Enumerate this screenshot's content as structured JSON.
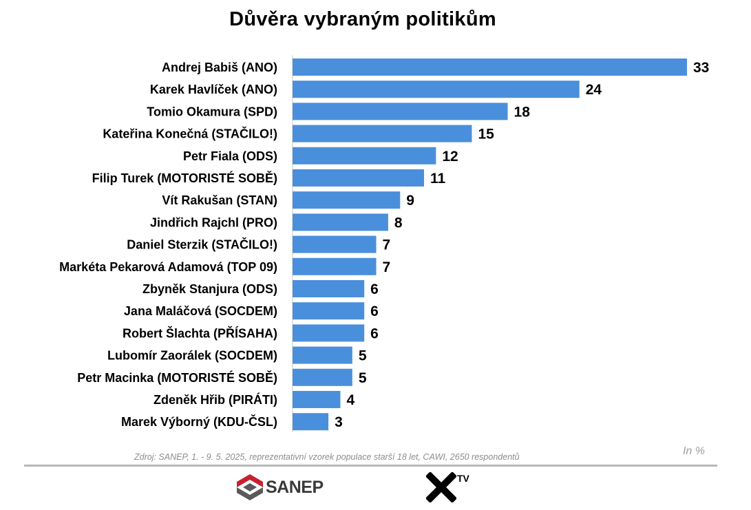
{
  "chart_data": {
    "type": "bar",
    "orientation": "horizontal",
    "title": "Důvěra vybraným politikům",
    "categories": [
      "Andrej Babiš (ANO)",
      "Karek Havlíček (ANO)",
      "Tomio Okamura (SPD)",
      "Kateřina Konečná (STAČILO!)",
      "Petr Fiala (ODS)",
      "Filip Turek (MOTORISTÉ SOBĚ)",
      "Vít Rakušan (STAN)",
      "Jindřich Rajchl (PRO)",
      "Daniel Sterzik (STAČILO!)",
      "Markéta Pekarová Adamová (TOP 09)",
      "Zbyněk Stanjura (ODS)",
      "Jana Maláčová (SOCDEM)",
      "Robert Šlachta (PŘÍSAHA)",
      "Lubomír Zaorálek (SOCDEM)",
      "Petr Macinka (MOTORISTÉ SOBĚ)",
      "Zdeněk Hřib (PIRÁTI)",
      "Marek Výborný (KDU-ČSL)"
    ],
    "values": [
      33,
      24,
      18,
      15,
      12,
      11,
      9,
      8,
      7,
      7,
      6,
      6,
      6,
      5,
      5,
      4,
      3
    ],
    "xlim": [
      0,
      33
    ],
    "bar_color": "#4a8fdb",
    "axis_color": "#d0d0d0",
    "grid": false,
    "legend": "none",
    "data_labels": true
  },
  "unit_note": "In %",
  "source_note": "Zdroj: SANEP, 1. - 9. 5. 2025, reprezentativní vzorek populace starší 18 let, CAWI, 2650 respondentů",
  "logos": {
    "sanep_text": "SANEP",
    "xtv_text": "TV",
    "sanep_red": "#c8202f",
    "sanep_gray": "#5a5a5a"
  }
}
